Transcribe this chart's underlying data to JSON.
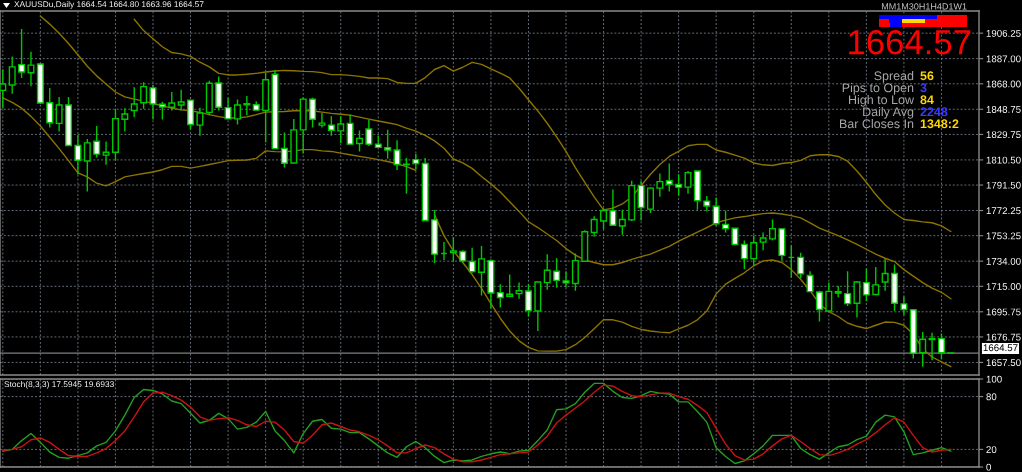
{
  "chart_data": [
    {
      "type": "candlestick",
      "title": "XAUUSDu,Daily 1664.54 1664.80 1663.96 1664.57",
      "categories": [
        null,
        null,
        null,
        null,
        null,
        null,
        null,
        null,
        null,
        null,
        null,
        null,
        null,
        null,
        null,
        null,
        null,
        null,
        null,
        null,
        null,
        null,
        null,
        null,
        null,
        null,
        null,
        null,
        null,
        null,
        null,
        null,
        null,
        null,
        null,
        null,
        null,
        null,
        null,
        null,
        null,
        null,
        null,
        null,
        null,
        null,
        null,
        null,
        null,
        null,
        null,
        null,
        null,
        null,
        null,
        null,
        null,
        null,
        null,
        null,
        null,
        null,
        null,
        null,
        null,
        null,
        null,
        null,
        null,
        null,
        null,
        null,
        null,
        null,
        null,
        null,
        null,
        null,
        null,
        null,
        null,
        null,
        null,
        null,
        null,
        null,
        null,
        null,
        null,
        null,
        null,
        null,
        null,
        null,
        null,
        null,
        null,
        null,
        null,
        null,
        null,
        null
      ],
      "series": [
        {
          "type": "candlestick",
          "color": "#00c800",
          "ohlc": [
            [
              1863.0,
              1878.9,
              1849.6,
              1867.9
            ],
            [
              1867.1,
              1888.7,
              1860.5,
              1880.8
            ],
            [
              1882.5,
              1909.4,
              1872.3,
              1876.9
            ],
            [
              1876.4,
              1892.3,
              1866.2,
              1882.1
            ],
            [
              1883.0,
              1883.8,
              1852.7,
              1853.5
            ],
            [
              1853.7,
              1864.9,
              1834.9,
              1838.6
            ],
            [
              1838.1,
              1858.1,
              1832.0,
              1852.0
            ],
            [
              1852.0,
              1858.1,
              1821.2,
              1821.4
            ],
            [
              1821.4,
              1829.3,
              1799.5,
              1810.2
            ],
            [
              1809.7,
              1826.3,
              1786.7,
              1823.4
            ],
            [
              1824.6,
              1836.1,
              1812.4,
              1814.9
            ],
            [
              1814.1,
              1824.4,
              1806.8,
              1816.3
            ],
            [
              1816.3,
              1848.6,
              1810.5,
              1841.7
            ],
            [
              1841.2,
              1849.6,
              1832.0,
              1845.2
            ],
            [
              1847.8,
              1865.4,
              1843.0,
              1852.7
            ],
            [
              1853.7,
              1869.1,
              1849.1,
              1865.9
            ],
            [
              1864.9,
              1867.1,
              1841.0,
              1852.7
            ],
            [
              1852.5,
              1854.4,
              1841.0,
              1850.5
            ],
            [
              1850.3,
              1861.8,
              1847.8,
              1853.5
            ],
            [
              1852.0,
              1863.5,
              1847.8,
              1854.2
            ],
            [
              1855.7,
              1855.9,
              1833.7,
              1837.3
            ],
            [
              1836.8,
              1850.0,
              1828.8,
              1845.9
            ],
            [
              1846.4,
              1870.3,
              1844.2,
              1868.4
            ],
            [
              1868.6,
              1873.5,
              1847.8,
              1850.3
            ],
            [
              1850.0,
              1857.4,
              1841.0,
              1841.5
            ],
            [
              1841.5,
              1856.2,
              1837.3,
              1852.0
            ],
            [
              1852.2,
              1858.8,
              1844.2,
              1853.0
            ],
            [
              1852.2,
              1854.9,
              1847.6,
              1848.1
            ],
            [
              1847.8,
              1876.4,
              1823.9,
              1871.1
            ],
            [
              1875.2,
              1878.4,
              1818.8,
              1819.0
            ],
            [
              1819.2,
              1831.2,
              1804.8,
              1808.0
            ],
            [
              1808.2,
              1841.5,
              1808.0,
              1833.2
            ],
            [
              1833.2,
              1857.4,
              1815.3,
              1856.4
            ],
            [
              1856.4,
              1857.4,
              1834.9,
              1841.2
            ],
            [
              1836.8,
              1845.9,
              1834.9,
              1838.3
            ],
            [
              1836.8,
              1843.4,
              1828.8,
              1832.9
            ],
            [
              1832.4,
              1843.4,
              1823.2,
              1837.6
            ],
            [
              1838.1,
              1844.9,
              1822.2,
              1822.4
            ],
            [
              1822.9,
              1832.7,
              1816.8,
              1826.8
            ],
            [
              1833.9,
              1840.8,
              1821.0,
              1822.4
            ],
            [
              1822.4,
              1829.0,
              1819.5,
              1820.0
            ],
            [
              1819.7,
              1833.2,
              1811.4,
              1818.0
            ],
            [
              1818.0,
              1825.4,
              1802.9,
              1807.0
            ],
            [
              1807.0,
              1811.9,
              1785.0,
              1807.3
            ],
            [
              1810.7,
              1815.1,
              1803.4,
              1807.8
            ],
            [
              1807.8,
              1811.9,
              1764.3,
              1764.7
            ],
            [
              1765.2,
              1772.6,
              1732.5,
              1739.3
            ],
            [
              1739.8,
              1748.4,
              1734.9,
              1739.8
            ],
            [
              1740.5,
              1752.0,
              1733.7,
              1741.8
            ],
            [
              1741.3,
              1742.3,
              1733.0,
              1734.2
            ],
            [
              1733.7,
              1744.2,
              1725.2,
              1726.1
            ],
            [
              1725.6,
              1745.4,
              1708.0,
              1735.7
            ],
            [
              1734.4,
              1735.4,
              1698.3,
              1710.0
            ],
            [
              1710.2,
              1716.6,
              1699.0,
              1706.6
            ],
            [
              1707.5,
              1723.9,
              1706.8,
              1709.0
            ],
            [
              1709.5,
              1717.8,
              1705.6,
              1711.7
            ],
            [
              1711.5,
              1716.6,
              1692.2,
              1696.6
            ],
            [
              1696.3,
              1718.5,
              1681.2,
              1718.3
            ],
            [
              1717.8,
              1739.3,
              1712.4,
              1727.1
            ],
            [
              1726.4,
              1736.2,
              1713.9,
              1719.5
            ],
            [
              1719.0,
              1726.4,
              1714.2,
              1717.6
            ],
            [
              1717.1,
              1739.8,
              1711.7,
              1734.4
            ],
            [
              1733.9,
              1757.4,
              1733.7,
              1756.2
            ],
            [
              1755.7,
              1767.9,
              1752.5,
              1765.5
            ],
            [
              1764.3,
              1774.0,
              1758.1,
              1772.3
            ],
            [
              1772.1,
              1788.2,
              1760.6,
              1761.1
            ],
            [
              1760.6,
              1772.8,
              1754.0,
              1765.5
            ],
            [
              1765.2,
              1794.8,
              1764.3,
              1791.1
            ],
            [
              1791.1,
              1794.8,
              1764.7,
              1774.5
            ],
            [
              1773.3,
              1789.9,
              1770.4,
              1789.2
            ],
            [
              1789.2,
              1800.2,
              1782.6,
              1794.1
            ],
            [
              1794.8,
              1807.7,
              1786.7,
              1792.1
            ],
            [
              1791.9,
              1799.7,
              1783.8,
              1789.9
            ],
            [
              1789.9,
              1802.1,
              1785.0,
              1800.9
            ],
            [
              1802.1,
              1802.4,
              1772.8,
              1779.7
            ],
            [
              1779.4,
              1783.3,
              1771.6,
              1775.7
            ],
            [
              1775.5,
              1782.1,
              1760.6,
              1762.3
            ],
            [
              1761.8,
              1772.1,
              1755.7,
              1758.6
            ],
            [
              1758.9,
              1759.1,
              1745.9,
              1746.7
            ],
            [
              1746.7,
              1749.6,
              1728.1,
              1735.9
            ],
            [
              1735.9,
              1753.3,
              1730.5,
              1747.9
            ],
            [
              1748.4,
              1755.7,
              1742.3,
              1751.5
            ],
            [
              1750.8,
              1765.5,
              1749.6,
              1758.6
            ],
            [
              1758.4,
              1758.6,
              1734.4,
              1738.4
            ],
            [
              1736.9,
              1745.9,
              1721.5,
              1736.9
            ],
            [
              1736.9,
              1740.3,
              1721.0,
              1724.4
            ],
            [
              1723.2,
              1726.4,
              1710.5,
              1711.0
            ],
            [
              1710.7,
              1711.7,
              1688.5,
              1697.5
            ],
            [
              1696.3,
              1717.8,
              1695.8,
              1711.2
            ],
            [
              1710.0,
              1715.4,
              1706.8,
              1711.0
            ],
            [
              1709.5,
              1726.4,
              1700.2,
              1701.9
            ],
            [
              1702.2,
              1719.0,
              1691.4,
              1718.3
            ],
            [
              1717.8,
              1728.3,
              1703.9,
              1708.5
            ],
            [
              1708.8,
              1729.6,
              1708.0,
              1716.1
            ],
            [
              1718.3,
              1735.7,
              1711.7,
              1724.7
            ],
            [
              1724.7,
              1731.5,
              1696.3,
              1702.2
            ],
            [
              1701.7,
              1707.3,
              1693.4,
              1697.5
            ],
            [
              1697.3,
              1697.5,
              1660.4,
              1664.5
            ],
            [
              1664.8,
              1680.4,
              1654.3,
              1675.0
            ],
            [
              1674.8,
              1679.9,
              1659.2,
              1675.5
            ],
            [
              1675.5,
              1679.4,
              1660.1,
              1664.8
            ],
            [
              1664.54,
              1664.8,
              1663.96,
              1664.57
            ]
          ],
          "colors": [
            "#000000",
            "#000000",
            "#ffffff",
            "#000000",
            "#ffffff",
            "#ffffff",
            "#000000",
            "#ffffff",
            "#ffffff",
            "#000000",
            "#ffffff",
            "#000000",
            "#000000",
            "#000000",
            "#000000",
            "#000000",
            "#ffffff",
            "#ffffff",
            "#000000",
            "#000000",
            "#ffffff",
            "#000000",
            "#000000",
            "#ffffff",
            "#ffffff",
            "#000000",
            "#000000",
            "#ffffff",
            "#000000",
            "#ffffff",
            "#ffffff",
            "#000000",
            "#000000",
            "#ffffff",
            "#000000",
            "#ffffff",
            "#000000",
            "#ffffff",
            "#000000",
            "#ffffff",
            "#ffffff",
            "#ffffff",
            "#ffffff",
            "#000000",
            "#ffffff",
            "#ffffff",
            "#ffffff",
            "#00c800",
            "#000000",
            "#ffffff",
            "#ffffff",
            "#000000",
            "#ffffff",
            "#ffffff",
            "#000000",
            "#000000",
            "#ffffff",
            "#000000",
            "#000000",
            "#ffffff",
            "#ffffff",
            "#000000",
            "#000000",
            "#000000",
            "#000000",
            "#ffffff",
            "#000000",
            "#000000",
            "#ffffff",
            "#000000",
            "#000000",
            "#ffffff",
            "#ffffff",
            "#000000",
            "#ffffff",
            "#ffffff",
            "#ffffff",
            "#ffffff",
            "#ffffff",
            "#ffffff",
            "#000000",
            "#000000",
            "#000000",
            "#ffffff",
            "#00c800",
            "#ffffff",
            "#ffffff",
            "#ffffff",
            "#000000",
            "#000000",
            "#ffffff",
            "#000000",
            "#ffffff",
            "#000000",
            "#000000",
            "#ffffff",
            "#ffffff",
            "#ffffff",
            "#000000",
            "#000000",
            "#ffffff",
            "#00c800"
          ]
        },
        {
          "type": "line",
          "color": "#8c7400",
          "values": [
            null,
            null,
            null,
            null,
            null,
            null,
            null,
            null,
            null,
            null,
            null,
            null,
            null,
            null,
            1916.8,
            1908.2,
            1902.1,
            1896.0,
            1891.6,
            1890.6,
            1888.7,
            1884.3,
            1880.8,
            1875.9,
            1874.7,
            1874.7,
            1875.2,
            1875.9,
            1876.9,
            1877.7,
            1878.1,
            1877.9,
            1877.4,
            1877.2,
            1876.4,
            1874.9,
            1874.9,
            1874.4,
            1873.6,
            1872.4,
            1872.4,
            1871.9,
            1869.0,
            1868.3,
            1868.3,
            1872.7,
            1878.8,
            1881.7,
            1877.6,
            1880.5,
            1884.2,
            1882.7,
            1879.3,
            1876.1,
            1872.4,
            1864.6,
            1856.0,
            1847.5,
            1838.2,
            1827.9,
            1816.9,
            1804.6,
            1793.6,
            1782.6,
            1772.8,
            1774.0,
            1777.2,
            1782.5,
            1791.1,
            1799.7,
            1807.0,
            1813.1,
            1817.0,
            1821.2,
            1822.2,
            1822.2,
            1818.0,
            1816.3,
            1814.1,
            1811.9,
            1808.2,
            1806.8,
            1806.3,
            1807.8,
            1808.5,
            1810.2,
            1813.6,
            1814.4,
            1814.4,
            1813.1,
            1809.5,
            1802.1,
            1793.6,
            1784.3,
            1776.5,
            1770.4,
            1765.5,
            1764.7,
            1763.7,
            1763.0,
            1760.6,
            1756.4
          ]
        },
        {
          "type": "line",
          "color": "#8c7400",
          "values": [
            null,
            null,
            null,
            null,
            1919.2,
            1913.1,
            1906.2,
            1898.4,
            1889.9,
            1881.3,
            1874.0,
            1867.9,
            1861.8,
            1858.1,
            1856.4,
            1854.9,
            1853.2,
            1851.3,
            1849.6,
            1848.3,
            1847.6,
            1846.4,
            1844.7,
            1843.2,
            1842.2,
            1842.2,
            1843.0,
            1844.7,
            1846.6,
            1846.9,
            1847.1,
            1847.6,
            1847.8,
            1847.6,
            1846.6,
            1845.7,
            1845.0,
            1844.3,
            1842.8,
            1841.3,
            1839.9,
            1838.6,
            1837.2,
            1834.5,
            1832.3,
            1829.1,
            1824.9,
            1819.3,
            1811.2,
            1808.3,
            1804.1,
            1798.0,
            1792.4,
            1786.3,
            1778.9,
            1771.6,
            1763.8,
            1759.4,
            1754.5,
            1749.6,
            1743.5,
            1738.6,
            1734.9,
            1733.0,
            1731.3,
            1731.3,
            1733.0,
            1735.4,
            1737.4,
            1739.3,
            1742.3,
            1745.2,
            1749.1,
            1752.5,
            1755.9,
            1759.4,
            1763.0,
            1765.0,
            1766.7,
            1767.7,
            1768.9,
            1769.9,
            1770.4,
            1769.6,
            1768.4,
            1766.7,
            1763.0,
            1758.9,
            1756.2,
            1753.3,
            1750.1,
            1746.6,
            1743.0,
            1739.3,
            1736.2,
            1733.7,
            1727.6,
            1722.7,
            1717.8,
            1713.7,
            1710.5,
            1705.6
          ]
        },
        {
          "type": "line",
          "color": "#8c7400",
          "values": [
            1857.4,
            1853.9,
            1849.6,
            1843.4,
            1836.1,
            1827.6,
            1819.0,
            1810.0,
            1800.7,
            1797.7,
            1792.9,
            1790.9,
            1794.1,
            1797.7,
            1799.0,
            1800.2,
            1801.4,
            1803.1,
            1805.6,
            1805.6,
            1804.3,
            1805.6,
            1807.0,
            1808.5,
            1810.0,
            1810.2,
            1810.4,
            1811.7,
            1817.3,
            1816.8,
            1816.6,
            1817.3,
            1818.3,
            1818.3,
            1817.3,
            1816.9,
            1815.6,
            1814.4,
            1813.2,
            1812.0,
            1810.7,
            1809.3,
            1807.6,
            1805.4,
            1802.7,
            null,
            1769.1,
            1753.3,
            1741.8,
            1733.0,
            1723.9,
            1713.4,
            1701.9,
            1690.9,
            1681.2,
            1673.8,
            1668.9,
            1666.2,
            1666.0,
            1666.0,
            1667.2,
            1670.9,
            1676.3,
            1682.9,
            1689.7,
            1689.7,
            1688.0,
            1684.8,
            1682.4,
            1681.2,
            1680.4,
            1679.9,
            1682.9,
            1685.6,
            1689.7,
            1696.3,
            1709.3,
            1716.6,
            1721.0,
            1725.2,
            1730.5,
            1734.2,
            1734.9,
            1733.0,
            1727.6,
            1720.3,
            1711.7,
            1701.9,
            1695.8,
            1692.2,
            1687.3,
            1684.8,
            1683.1,
            1685.6,
            1688.0,
            1687.8,
            1685.6,
            1678.7,
            1667.7,
            1661.6,
            1657.9,
            1654.3
          ]
        }
      ],
      "ylim": [
        1648,
        1923
      ],
      "yticks": [
        {
          "value": 1657.5,
          "label": "1657.50"
        },
        {
          "value": 1676.75,
          "label": "1676.75"
        },
        {
          "value": 1695.75,
          "label": "1695.75"
        },
        {
          "value": 1715,
          "label": "1715.00"
        },
        {
          "value": 1734,
          "label": "1734.00"
        },
        {
          "value": 1753.25,
          "label": "1753.25"
        },
        {
          "value": 1772.25,
          "label": "1772.25"
        },
        {
          "value": 1791.5,
          "label": "1791.50"
        },
        {
          "value": 1810.5,
          "label": "1810.50"
        },
        {
          "value": 1829.75,
          "label": "1829.75"
        },
        {
          "value": 1848.75,
          "label": "1848.75"
        },
        {
          "value": 1868,
          "label": "1868.00"
        },
        {
          "value": 1887,
          "label": "1887.00"
        },
        {
          "value": 1906.25,
          "label": "1906.25"
        }
      ],
      "grid": true,
      "tick_labels": "y",
      "ref_lines": [
        {
          "axis": "y",
          "value": 1664.57,
          "label": "1664.57",
          "color": "#7f7f7f"
        }
      ],
      "annotations": [
        "MM1M30H1H4D1W1",
        "1664.57",
        "Spread",
        "56",
        "Pips to Open",
        "3",
        "High to Low",
        "84",
        "Daily Avg",
        "2248",
        "Bar Closes In",
        "1348:2"
      ]
    },
    {
      "type": "line",
      "title": "Stoch(8,3,3) 17.5945 19.6933",
      "categories": [
        null,
        null,
        null,
        null,
        null,
        null,
        null,
        null,
        null,
        null,
        null,
        null,
        null,
        null,
        null,
        null,
        null,
        null,
        null,
        null,
        null,
        null,
        null,
        null,
        null,
        null,
        null,
        null,
        null,
        null,
        null,
        null,
        null,
        null,
        null,
        null,
        null,
        null,
        null,
        null,
        null,
        null,
        null,
        null,
        null,
        null,
        null,
        null,
        null,
        null,
        null,
        null,
        null,
        null,
        null,
        null,
        null,
        null,
        null,
        null,
        null,
        null,
        null,
        null,
        null,
        null,
        null,
        null,
        null,
        null,
        null,
        null,
        null,
        null,
        null,
        null,
        null,
        null,
        null,
        null,
        null,
        null,
        null,
        null,
        null,
        null,
        null,
        null,
        null,
        null,
        null,
        null,
        null,
        null,
        null,
        null,
        null,
        null,
        null,
        null,
        null,
        null
      ],
      "series": [
        {
          "color": "#22a022",
          "values": [
            18,
            20,
            30,
            38,
            28,
            17,
            11,
            10,
            13,
            16,
            24,
            28,
            41,
            59,
            79,
            88,
            87,
            83,
            75,
            72,
            61,
            50,
            53,
            61,
            55,
            43,
            45,
            51,
            63,
            41,
            30,
            16,
            38,
            52,
            54,
            44,
            43,
            39,
            39,
            32,
            24,
            16,
            11,
            23,
            29,
            22,
            12,
            5,
            8,
            7,
            8,
            12,
            15,
            17,
            15,
            18,
            19,
            30,
            42,
            65,
            66,
            72,
            85,
            95,
            95,
            86,
            79,
            78,
            81,
            86,
            84,
            83,
            74,
            74,
            63,
            51,
            22,
            12,
            4,
            7,
            15,
            24,
            36,
            36,
            36,
            21,
            14,
            9,
            16,
            23,
            25,
            31,
            35,
            51,
            59,
            57,
            40,
            14,
            16,
            19,
            22,
            18
          ]
        },
        {
          "color": "#c81414",
          "values": [
            19,
            20,
            23,
            31,
            33,
            28,
            20,
            13,
            12,
            12,
            16,
            21,
            30,
            41,
            57,
            74,
            84,
            85,
            81,
            76,
            68,
            57,
            53,
            55,
            56,
            53,
            48,
            46,
            52,
            51,
            42,
            29,
            27,
            36,
            48,
            50,
            46,
            42,
            40,
            36,
            31,
            24,
            16,
            16,
            21,
            25,
            22,
            15,
            9,
            6,
            6,
            8,
            11,
            14,
            15,
            16,
            17,
            25,
            35,
            50,
            59,
            67,
            75,
            85,
            93,
            92,
            86,
            81,
            80,
            82,
            84,
            84,
            80,
            77,
            70,
            62,
            44,
            26,
            13,
            8,
            9,
            15,
            24,
            32,
            36,
            29,
            21,
            14,
            13,
            16,
            20,
            26,
            31,
            39,
            48,
            56,
            51,
            36,
            22,
            17,
            19,
            20
          ]
        }
      ],
      "ylim": [
        0,
        100
      ],
      "yticks": [
        0,
        20,
        80,
        100
      ],
      "grid": true,
      "tick_labels": "y"
    }
  ]
}
